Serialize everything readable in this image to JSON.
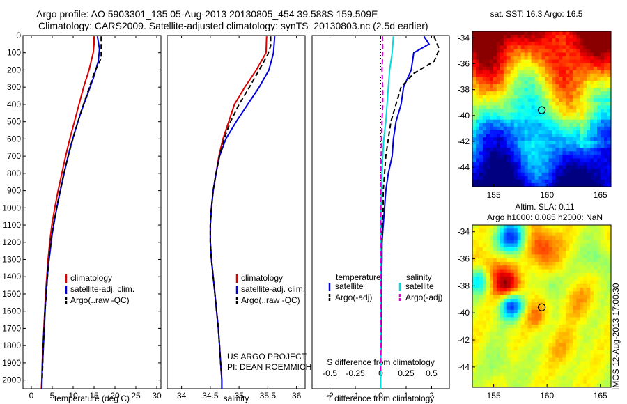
{
  "header": {
    "line1": "Argo profile: AO 5903301_135 05-Aug-2013 20130805_454 39.588S 159.509E",
    "line2": "Climatology: CARS2009. Satellite-adjusted climatology: synTS_20130803.nc (2.5d earlier)"
  },
  "stamp": "IMOS 12-Aug-2013 17:00:30",
  "credit": {
    "line1": "US ARGO PROJECT",
    "line2": "PI: DEAN ROEMMICH"
  },
  "colors": {
    "climatology": "#dd0000",
    "satellite": "#0000dd",
    "argo": "#000000",
    "sat_sal": "#00dddd",
    "argo_sal": "#dd00dd"
  },
  "chart_data": [
    {
      "type": "line",
      "id": "temperature",
      "xlabel": "temperature (deg C)",
      "ylabel": "",
      "xlim": [
        -2,
        31
      ],
      "ylim": [
        2050,
        0
      ],
      "xticks": [
        0,
        5,
        10,
        15,
        20,
        25,
        30
      ],
      "yticks": [
        0,
        100,
        200,
        300,
        400,
        500,
        600,
        700,
        800,
        900,
        1000,
        1100,
        1200,
        1300,
        1400,
        1500,
        1600,
        1700,
        1800,
        1900,
        2000
      ],
      "legend": [
        "climatology",
        "satellite-adj. clim.",
        "Argo(..raw -QC)"
      ],
      "legend_position": "lower-right",
      "series": [
        {
          "name": "climatology",
          "color": "#dd0000",
          "dash": false,
          "points": [
            [
              15.0,
              5
            ],
            [
              15.0,
              50
            ],
            [
              14.8,
              100
            ],
            [
              13.8,
              200
            ],
            [
              12.5,
              300
            ],
            [
              11.4,
              400
            ],
            [
              10.3,
              500
            ],
            [
              9.2,
              600
            ],
            [
              8.2,
              700
            ],
            [
              7.3,
              800
            ],
            [
              6.4,
              900
            ],
            [
              5.6,
              1000
            ],
            [
              4.9,
              1100
            ],
            [
              4.4,
              1200
            ],
            [
              4.0,
              1300
            ],
            [
              3.7,
              1400
            ],
            [
              3.4,
              1500
            ],
            [
              3.2,
              1600
            ],
            [
              3.0,
              1700
            ],
            [
              2.8,
              1800
            ],
            [
              2.6,
              1900
            ],
            [
              2.5,
              2000
            ],
            [
              2.4,
              2050
            ]
          ]
        },
        {
          "name": "satellite-adj. clim.",
          "color": "#0000dd",
          "dash": false,
          "points": [
            [
              15.8,
              5
            ],
            [
              16.3,
              80
            ],
            [
              16.0,
              150
            ],
            [
              14.8,
              250
            ],
            [
              13.3,
              350
            ],
            [
              11.8,
              450
            ],
            [
              10.5,
              550
            ],
            [
              9.3,
              650
            ],
            [
              8.3,
              750
            ],
            [
              7.4,
              850
            ],
            [
              6.5,
              950
            ],
            [
              5.7,
              1050
            ],
            [
              5.0,
              1150
            ],
            [
              4.5,
              1250
            ],
            [
              4.0,
              1350
            ],
            [
              3.7,
              1450
            ],
            [
              3.4,
              1550
            ],
            [
              3.2,
              1650
            ],
            [
              3.0,
              1750
            ],
            [
              2.8,
              1850
            ],
            [
              2.6,
              1950
            ],
            [
              2.5,
              2050
            ]
          ]
        },
        {
          "name": "Argo(..raw -QC)",
          "color": "#000000",
          "dash": true,
          "points": [
            [
              16.7,
              5
            ],
            [
              16.7,
              60
            ],
            [
              16.7,
              130
            ],
            [
              15.0,
              220
            ],
            [
              13.6,
              320
            ],
            [
              12.2,
              420
            ],
            [
              10.9,
              520
            ],
            [
              9.7,
              620
            ],
            [
              8.6,
              720
            ],
            [
              7.6,
              820
            ],
            [
              6.7,
              920
            ],
            [
              5.9,
              1020
            ],
            [
              5.1,
              1120
            ],
            [
              4.5,
              1220
            ],
            [
              4.1,
              1320
            ],
            [
              3.8,
              1420
            ],
            [
              3.5,
              1520
            ],
            [
              3.2,
              1620
            ],
            [
              3.0,
              1720
            ],
            [
              2.8,
              1820
            ],
            [
              2.7,
              1920
            ],
            [
              2.6,
              2000
            ]
          ]
        }
      ]
    },
    {
      "type": "line",
      "id": "salinity",
      "xlabel": "salinity",
      "ylabel": "",
      "xlim": [
        33.75,
        36.15
      ],
      "ylim": [
        2050,
        0
      ],
      "xticks": [
        34,
        34.5,
        35,
        35.5,
        36
      ],
      "xticklabels": [
        "34",
        "34.5",
        "35",
        "35.5",
        "36"
      ],
      "legend": [
        "climatology",
        "satellite-adj. clim.",
        "Argo(..raw -QC)"
      ],
      "legend_position": "lower-right",
      "series": [
        {
          "name": "climatology",
          "color": "#dd0000",
          "dash": false,
          "points": [
            [
              35.48,
              5
            ],
            [
              35.47,
              100
            ],
            [
              35.3,
              200
            ],
            [
              35.1,
              300
            ],
            [
              34.92,
              400
            ],
            [
              34.82,
              500
            ],
            [
              34.72,
              600
            ],
            [
              34.65,
              700
            ],
            [
              34.6,
              800
            ],
            [
              34.55,
              900
            ],
            [
              34.52,
              1000
            ],
            [
              34.5,
              1100
            ],
            [
              34.5,
              1200
            ],
            [
              34.52,
              1300
            ],
            [
              34.55,
              1400
            ],
            [
              34.58,
              1500
            ],
            [
              34.61,
              1600
            ],
            [
              34.64,
              1700
            ],
            [
              34.66,
              1800
            ],
            [
              34.68,
              1900
            ],
            [
              34.7,
              2000
            ],
            [
              34.7,
              2050
            ]
          ]
        },
        {
          "name": "satellite-adj. clim.",
          "color": "#0000dd",
          "dash": false,
          "points": [
            [
              35.62,
              5
            ],
            [
              35.6,
              100
            ],
            [
              35.52,
              200
            ],
            [
              35.35,
              300
            ],
            [
              35.15,
              400
            ],
            [
              34.95,
              500
            ],
            [
              34.77,
              600
            ],
            [
              34.66,
              700
            ],
            [
              34.6,
              800
            ],
            [
              34.55,
              900
            ],
            [
              34.52,
              1000
            ],
            [
              34.5,
              1100
            ],
            [
              34.5,
              1200
            ],
            [
              34.52,
              1300
            ],
            [
              34.55,
              1400
            ],
            [
              34.58,
              1500
            ],
            [
              34.61,
              1600
            ],
            [
              34.64,
              1700
            ],
            [
              34.66,
              1800
            ],
            [
              34.68,
              1900
            ],
            [
              34.7,
              2000
            ],
            [
              34.7,
              2050
            ]
          ]
        },
        {
          "name": "Argo(..raw -QC)",
          "color": "#000000",
          "dash": true,
          "points": [
            [
              35.55,
              5
            ],
            [
              35.55,
              60
            ],
            [
              35.5,
              110
            ],
            [
              35.35,
              200
            ],
            [
              35.18,
              300
            ],
            [
              35.0,
              400
            ],
            [
              34.85,
              500
            ],
            [
              34.74,
              600
            ],
            [
              34.66,
              700
            ],
            [
              34.6,
              800
            ],
            [
              34.55,
              900
            ],
            [
              34.52,
              1000
            ],
            [
              34.5,
              1100
            ],
            [
              34.5,
              1200
            ],
            [
              34.52,
              1300
            ],
            [
              34.55,
              1400
            ],
            [
              34.58,
              1500
            ],
            [
              34.61,
              1600
            ],
            [
              34.64,
              1700
            ],
            [
              34.66,
              1800
            ],
            [
              34.68,
              1900
            ],
            [
              34.69,
              1950
            ]
          ]
        }
      ]
    },
    {
      "type": "line",
      "id": "difference",
      "xlabel": "T difference from climatology",
      "x2label": "S difference from climatology",
      "xlim": [
        -2.7,
        2.7
      ],
      "ylim": [
        2050,
        0
      ],
      "xticks": [
        -2,
        -1,
        0,
        1,
        2
      ],
      "x2ticks": [
        -0.5,
        -0.25,
        0,
        0.25,
        0.5
      ],
      "x2ticklabels": [
        "-0.5",
        "-0.25",
        "0",
        "0.25",
        "0.5"
      ],
      "legend_headers": [
        "temperature",
        "salinity"
      ],
      "legend": [
        "satellite",
        "Argo(-adj)",
        "satellite",
        "Argo(-adj)"
      ],
      "series": [
        {
          "name": "satellite",
          "quantity": "temperature",
          "color": "#0000dd",
          "dash": false,
          "points": [
            [
              1.7,
              5
            ],
            [
              1.9,
              50
            ],
            [
              1.3,
              100
            ],
            [
              1.2,
              200
            ],
            [
              0.9,
              300
            ],
            [
              0.8,
              400
            ],
            [
              0.6,
              500
            ],
            [
              0.5,
              600
            ],
            [
              0.45,
              700
            ],
            [
              0.3,
              800
            ],
            [
              0.2,
              900
            ],
            [
              0.15,
              1000
            ],
            [
              0.1,
              1100
            ],
            [
              0.05,
              1200
            ],
            [
              0.05,
              1300
            ],
            [
              0.03,
              1400
            ],
            [
              0.02,
              1500
            ],
            [
              0.02,
              1600
            ],
            [
              0.01,
              1700
            ],
            [
              0.01,
              1800
            ],
            [
              0.0,
              1900
            ],
            [
              0.0,
              2050
            ]
          ]
        },
        {
          "name": "Argo(-adj)",
          "quantity": "temperature",
          "color": "#000000",
          "dash": true,
          "points": [
            [
              2.1,
              5
            ],
            [
              2.3,
              80
            ],
            [
              2.1,
              150
            ],
            [
              1.3,
              220
            ],
            [
              0.8,
              300
            ],
            [
              0.6,
              400
            ],
            [
              0.4,
              500
            ],
            [
              0.3,
              600
            ],
            [
              0.2,
              700
            ],
            [
              0.15,
              800
            ],
            [
              0.1,
              900
            ],
            [
              0.1,
              1000
            ],
            [
              0.05,
              1100
            ],
            [
              0.05,
              1200
            ],
            [
              0.03,
              1300
            ],
            [
              0.02,
              1400
            ],
            [
              0.02,
              1500
            ],
            [
              0.02,
              1600
            ],
            [
              0.01,
              1700
            ],
            [
              0.0,
              1800
            ],
            [
              0.0,
              1900
            ],
            [
              0.0,
              2000
            ]
          ]
        },
        {
          "name": "satellite",
          "quantity": "salinity",
          "color": "#00dddd",
          "dash": false,
          "points": [
            [
              0.5,
              5
            ],
            [
              0.45,
              100
            ],
            [
              0.35,
              200
            ],
            [
              0.3,
              300
            ],
            [
              0.25,
              400
            ],
            [
              0.2,
              500
            ],
            [
              0.12,
              600
            ],
            [
              0.08,
              700
            ],
            [
              0.05,
              800
            ],
            [
              0.03,
              900
            ],
            [
              0.02,
              1000
            ],
            [
              0.0,
              1100
            ],
            [
              0.0,
              1200
            ],
            [
              0.0,
              1300
            ],
            [
              0.0,
              1400
            ],
            [
              0.0,
              1500
            ],
            [
              0.0,
              1600
            ],
            [
              0.0,
              1700
            ],
            [
              0.0,
              1800
            ],
            [
              0.0,
              1900
            ],
            [
              0.0,
              2050
            ]
          ]
        },
        {
          "name": "Argo(-adj)",
          "quantity": "salinity",
          "color": "#dd00dd",
          "dash": true,
          "points": [
            [
              0.07,
              5
            ],
            [
              0.08,
              100
            ],
            [
              0.05,
              200
            ],
            [
              0.08,
              300
            ],
            [
              0.08,
              400
            ],
            [
              0.05,
              500
            ],
            [
              0.03,
              600
            ],
            [
              0.02,
              700
            ],
            [
              0.0,
              800
            ],
            [
              0.0,
              900
            ],
            [
              0.0,
              1000
            ],
            [
              0.0,
              1100
            ],
            [
              0.0,
              1200
            ],
            [
              0.0,
              1300
            ],
            [
              0.0,
              1400
            ],
            [
              0.0,
              1500
            ],
            [
              0.0,
              1600
            ],
            [
              0.0,
              1700
            ],
            [
              0.0,
              1800
            ],
            [
              0.0,
              1900
            ],
            [
              0.0,
              1950
            ]
          ]
        }
      ]
    },
    {
      "type": "heatmap",
      "id": "sst-map",
      "title": "sat. SST: 16.3 Argo: 16.5",
      "xlim": [
        153,
        166
      ],
      "ylim": [
        -45.5,
        -33.5
      ],
      "xticks": [
        155,
        160,
        165
      ],
      "yticks": [
        -34,
        -36,
        -38,
        -40,
        -42,
        -44
      ],
      "marker": {
        "lon": 159.509,
        "lat": -39.588
      }
    },
    {
      "type": "heatmap",
      "id": "sla-map",
      "title": "Altim. SLA: 0.11",
      "subtitle": "Argo h1000: 0.085 h2000: NaN",
      "xlim": [
        153,
        166
      ],
      "ylim": [
        -45.5,
        -33.5
      ],
      "xticks": [
        155,
        160,
        165
      ],
      "yticks": [
        -34,
        -36,
        -38,
        -40,
        -42,
        -44
      ],
      "marker": {
        "lon": 159.509,
        "lat": -39.588
      }
    }
  ]
}
